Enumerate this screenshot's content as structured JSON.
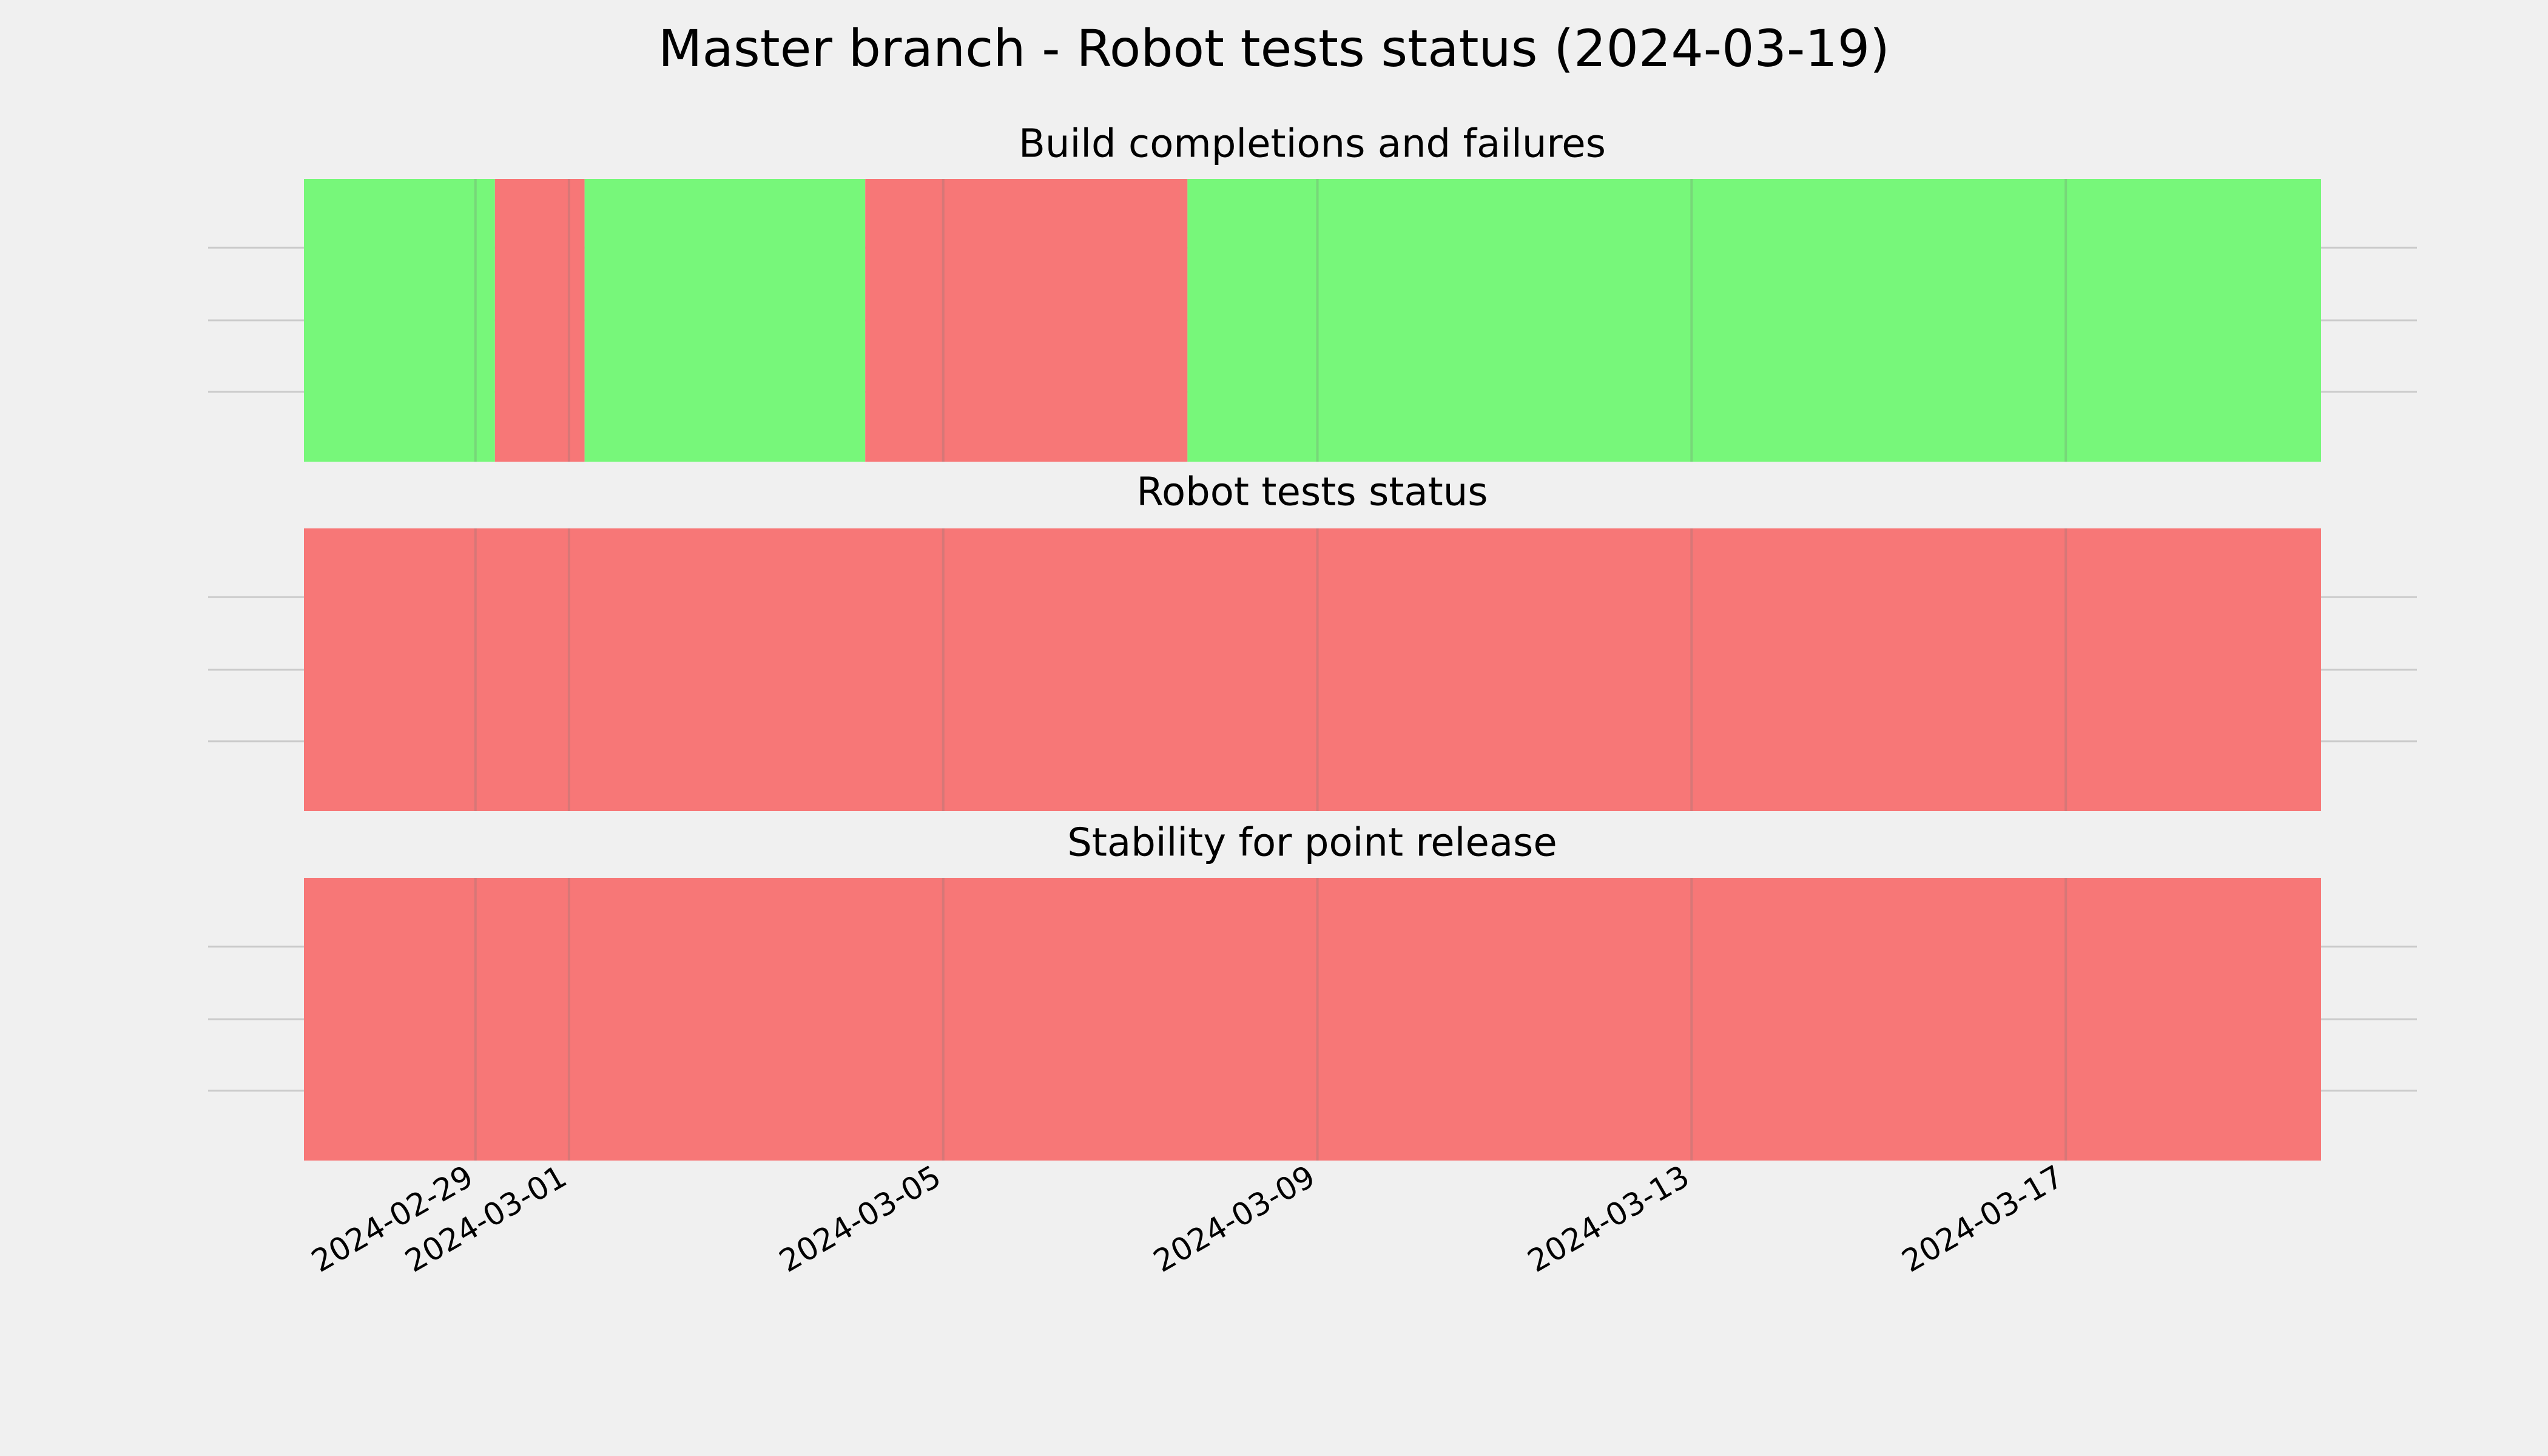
{
  "chart_data": {
    "type": "timeline",
    "title": "Master branch - Robot tests status (2024-03-19)",
    "xlim": [
      "2024-02-27T04:00",
      "2024-03-19T17:30"
    ],
    "xticks": [
      "2024-02-29",
      "2024-03-01",
      "2024-03-05",
      "2024-03-09",
      "2024-03-13",
      "2024-03-17"
    ],
    "grid": true,
    "panels": [
      {
        "title": "Build completions and failures",
        "spans": [
          {
            "start": "2024-02-27T04:00",
            "end": "2024-02-29T05:00",
            "color": "#77f77a"
          },
          {
            "start": "2024-02-29T05:00",
            "end": "2024-03-01T04:00",
            "color": "#f77777"
          },
          {
            "start": "2024-03-01T04:00",
            "end": "2024-03-04T04:00",
            "color": "#77f77a"
          },
          {
            "start": "2024-03-04T04:00",
            "end": "2024-03-07T14:40",
            "color": "#f77777"
          },
          {
            "start": "2024-03-07T14:40",
            "end": "2024-03-19T17:30",
            "color": "#77f77a"
          }
        ]
      },
      {
        "title": "Robot tests status",
        "spans": [
          {
            "start": "2024-02-27T04:00",
            "end": "2024-03-19T17:30",
            "color": "#f77777"
          }
        ]
      },
      {
        "title": "Stability for point release",
        "spans": [
          {
            "start": "2024-02-27T04:00",
            "end": "2024-03-19T17:30",
            "color": "#f77777"
          }
        ]
      }
    ]
  }
}
